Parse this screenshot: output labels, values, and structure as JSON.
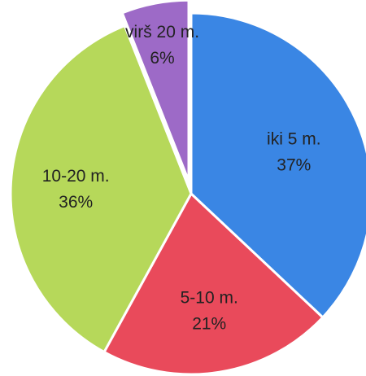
{
  "chart_data": {
    "type": "pie",
    "slices": [
      {
        "category": "iki 5 m.",
        "value": 37,
        "value_label": "37%",
        "color": "#3a86e4"
      },
      {
        "category": "5-10 m.",
        "value": 21,
        "value_label": "21%",
        "color": "#e94a5b"
      },
      {
        "category": "10-20 m.",
        "value": 36,
        "value_label": "36%",
        "color": "#b6d85a"
      },
      {
        "category": "virš 20 m.",
        "value": 6,
        "value_label": "6%",
        "color": "#9d6ac7"
      }
    ],
    "start": "12 o'clock",
    "direction": "clockwise",
    "exploded": "virš 20 m.",
    "legend": "none"
  }
}
